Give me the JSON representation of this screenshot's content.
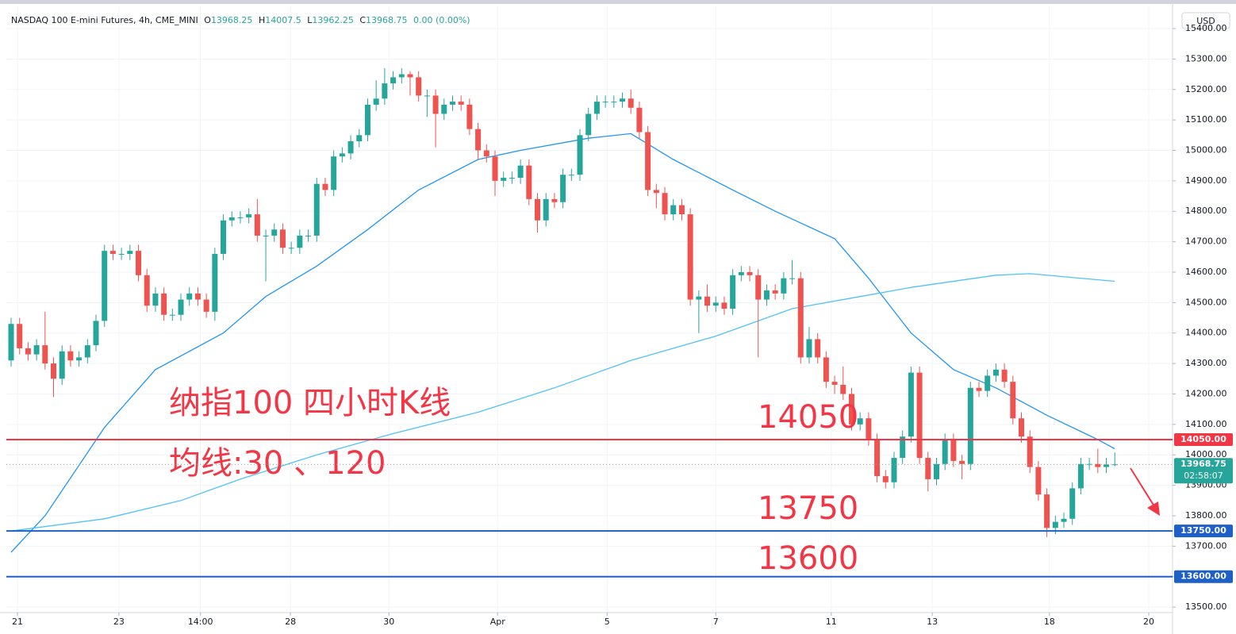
{
  "chart_data": {
    "type": "candlestick",
    "header": {
      "symbol": "NASDAQ 100 E-mini Futures, 4h, CME_MINI",
      "open_label": "O",
      "high_label": "H",
      "low_label": "L",
      "close_label": "C",
      "change": "0.00 (0.00%)"
    },
    "currency": "USD",
    "countdown": "02:58:07",
    "annotations": [
      "纳指100 四小时K线",
      "均线:30 、120",
      "14050",
      "13750",
      "13600"
    ],
    "up_color": "#26a69a",
    "down_color": "#ef5350",
    "xlim": [
      -0.56,
      136.8
    ],
    "ylim": [
      13482,
      15473
    ],
    "grid": true,
    "xticks": [
      {
        "value": 0.75,
        "label": "21"
      },
      {
        "value": 12.7,
        "label": "23"
      },
      {
        "value": 22.3,
        "label": "14:00"
      },
      {
        "value": 32.9,
        "label": "28"
      },
      {
        "value": 44.5,
        "label": "30"
      },
      {
        "value": 57.3,
        "label": "Apr"
      },
      {
        "value": 70.2,
        "label": "5"
      },
      {
        "value": 83,
        "label": "7"
      },
      {
        "value": 96.6,
        "label": "11"
      },
      {
        "value": 108.5,
        "label": "13"
      },
      {
        "value": 122.3,
        "label": "18"
      },
      {
        "value": 134,
        "label": "20"
      }
    ],
    "yticks": [
      {
        "value": 13500,
        "label": "13500.00"
      },
      {
        "value": 13600,
        "label": "13600.00"
      },
      {
        "value": 13700,
        "label": "13700.00"
      },
      {
        "value": 13800,
        "label": "13800.00"
      },
      {
        "value": 13900,
        "label": "13900.00"
      },
      {
        "value": 14000,
        "label": "14000.00"
      },
      {
        "value": 14100,
        "label": "14100.00"
      },
      {
        "value": 14200,
        "label": "14200.00"
      },
      {
        "value": 14300,
        "label": "14300.00"
      },
      {
        "value": 14400,
        "label": "14400.00"
      },
      {
        "value": 14500,
        "label": "14500.00"
      },
      {
        "value": 14600,
        "label": "14600.00"
      },
      {
        "value": 14700,
        "label": "14700.00"
      },
      {
        "value": 14800,
        "label": "14800.00"
      },
      {
        "value": 14900,
        "label": "14900.00"
      },
      {
        "value": 15000,
        "label": "15000.00"
      },
      {
        "value": 15100,
        "label": "15100.00"
      },
      {
        "value": 15200,
        "label": "15200.00"
      },
      {
        "value": 15300,
        "label": "15300.00"
      },
      {
        "value": 15400,
        "label": "15400.00"
      }
    ],
    "levels": [
      {
        "value": 14050,
        "label": "14050.00",
        "color": "#f23645"
      },
      {
        "value": 13750,
        "label": "13750.00",
        "color": "#1e5fc8"
      },
      {
        "value": 13600,
        "label": "13600.00",
        "color": "#1e5fc8"
      }
    ],
    "current_price_label": "13968.75",
    "open": [
      14310,
      14430,
      14350,
      14330,
      14360,
      14300,
      14250,
      14340,
      14310,
      14320,
      14360,
      14440,
      14670,
      14660,
      14660,
      14670,
      14590,
      14490,
      14530,
      14460,
      14460,
      14510,
      14530,
      14510,
      14470,
      14660,
      14770,
      14780,
      14780,
      14790,
      14720,
      14720,
      14740,
      14680,
      14680,
      14720,
      14720,
      14890,
      14870,
      14980,
      14990,
      15030,
      15050,
      15150,
      15170,
      15220,
      15240,
      15250,
      15240,
      15180,
      15180,
      15120,
      15150,
      15160,
      15150,
      15070,
      15000,
      14980,
      14900,
      14910,
      14910,
      14950,
      14840,
      14770,
      14840,
      14830,
      14920,
      14920,
      15050,
      15120,
      15160,
      15160,
      15160,
      15170,
      15140,
      15060,
      14870,
      14860,
      14790,
      14820,
      14790,
      14510,
      14520,
      14490,
      14500,
      14480,
      14590,
      14600,
      14590,
      14510,
      14540,
      14530,
      14580,
      14580,
      14320,
      14380,
      14320,
      14240,
      14230,
      14200,
      14100,
      14120,
      14050,
      13930,
      13910,
      13990,
      14060,
      14270,
      13990,
      13920,
      13970,
      14050,
      13980,
      13970,
      14220,
      14210,
      14260,
      14280,
      14240,
      14120,
      14060,
      13960,
      13870,
      13760,
      13780,
      13790,
      13890,
      13970,
      13970,
      13960,
      13968.25
    ],
    "high": [
      14450,
      14450,
      14370,
      14380,
      14470,
      14320,
      14360,
      14360,
      14340,
      14380,
      14460,
      14690,
      14690,
      14680,
      14690,
      14690,
      14610,
      14550,
      14550,
      14480,
      14530,
      14550,
      14550,
      14530,
      14680,
      14790,
      14800,
      14800,
      14810,
      14840,
      14740,
      14760,
      14760,
      14700,
      14740,
      14740,
      14910,
      14910,
      15000,
      15010,
      15050,
      15070,
      15170,
      15230,
      15270,
      15260,
      15270,
      15260,
      15260,
      15200,
      15200,
      15170,
      15180,
      15180,
      15170,
      15090,
      15020,
      15000,
      14930,
      14930,
      14970,
      14970,
      14860,
      14860,
      14860,
      14940,
      14940,
      15070,
      15140,
      15180,
      15180,
      15180,
      15190,
      15200,
      15160,
      15080,
      14890,
      14880,
      14840,
      14840,
      14810,
      14540,
      14560,
      14520,
      14520,
      14610,
      14620,
      14620,
      14610,
      14560,
      14560,
      14600,
      14640,
      14600,
      14420,
      14400,
      14340,
      14260,
      14290,
      14220,
      14140,
      14140,
      14070,
      13950,
      14010,
      14080,
      14290,
      14290,
      14010,
      13990,
      14070,
      14070,
      14000,
      14240,
      14240,
      14280,
      14300,
      14300,
      14260,
      14140,
      14080,
      13980,
      13890,
      13800,
      13810,
      13910,
      13990,
      13990,
      14020,
      13990,
      14007.5
    ],
    "low": [
      14290,
      14330,
      14310,
      14310,
      14280,
      14190,
      14230,
      14290,
      14290,
      14300,
      14340,
      14420,
      14640,
      14640,
      14640,
      14570,
      14470,
      14470,
      14440,
      14440,
      14440,
      14490,
      14490,
      14450,
      14440,
      14640,
      14750,
      14760,
      14760,
      14700,
      14570,
      14700,
      14660,
      14660,
      14660,
      14700,
      14700,
      14850,
      14850,
      14960,
      14970,
      15010,
      15030,
      15130,
      15150,
      15200,
      15220,
      15180,
      15160,
      15110,
      15010,
      15100,
      15130,
      15130,
      15050,
      14970,
      14960,
      14850,
      14880,
      14890,
      14890,
      14820,
      14730,
      14750,
      14810,
      14810,
      14900,
      14900,
      15030,
      15100,
      15140,
      15140,
      15140,
      15120,
      15040,
      14850,
      14810,
      14770,
      14770,
      14770,
      14490,
      14400,
      14470,
      14470,
      14460,
      14460,
      14570,
      14570,
      14320,
      14490,
      14510,
      14510,
      14560,
      14300,
      14300,
      14300,
      14220,
      14200,
      14180,
      14080,
      14080,
      14030,
      13910,
      13890,
      13890,
      13970,
      14040,
      13970,
      13880,
      13900,
      13950,
      13960,
      13920,
      13950,
      14190,
      14190,
      14240,
      14220,
      14100,
      14040,
      13940,
      13850,
      13730,
      13740,
      13760,
      13770,
      13870,
      13950,
      13940,
      13940,
      13962.25
    ],
    "close": [
      14430,
      14350,
      14330,
      14360,
      14300,
      14250,
      14340,
      14310,
      14320,
      14360,
      14440,
      14670,
      14660,
      14660,
      14670,
      14590,
      14490,
      14530,
      14460,
      14460,
      14510,
      14530,
      14510,
      14470,
      14660,
      14770,
      14780,
      14780,
      14790,
      14720,
      14720,
      14740,
      14680,
      14680,
      14720,
      14720,
      14890,
      14870,
      14980,
      14990,
      15030,
      15050,
      15150,
      15170,
      15220,
      15240,
      15250,
      15240,
      15180,
      15180,
      15120,
      15150,
      15160,
      15150,
      15070,
      15000,
      14980,
      14900,
      14910,
      14910,
      14950,
      14840,
      14770,
      14840,
      14830,
      14920,
      14920,
      15050,
      15120,
      15160,
      15160,
      15160,
      15170,
      15140,
      15060,
      14870,
      14860,
      14790,
      14820,
      14790,
      14510,
      14520,
      14490,
      14500,
      14480,
      14590,
      14600,
      14590,
      14510,
      14540,
      14530,
      14580,
      14580,
      14320,
      14380,
      14320,
      14240,
      14230,
      14200,
      14100,
      14120,
      14050,
      13930,
      13910,
      13990,
      14060,
      14270,
      13990,
      13920,
      13970,
      14050,
      13980,
      13970,
      14220,
      14210,
      14260,
      14280,
      14240,
      14120,
      14060,
      13960,
      13870,
      13760,
      13780,
      13790,
      13890,
      13970,
      13970,
      13960,
      13968.25,
      13968.75
    ],
    "series": [
      {
        "name": "MA30",
        "color": "#2196f3",
        "x": [
          0,
          4,
          11,
          17,
          25,
          30,
          36,
          42,
          48,
          55,
          60,
          68,
          73,
          78,
          85,
          90,
          97,
          101,
          106,
          111,
          116,
          122,
          128,
          130
        ],
        "values": [
          13680,
          13800,
          14090,
          14280,
          14400,
          14520,
          14620,
          14740,
          14870,
          14970,
          15000,
          15040,
          15055,
          14970,
          14870,
          14800,
          14710,
          14580,
          14400,
          14280,
          14220,
          14130,
          14050,
          14020
        ]
      },
      {
        "name": "MA120",
        "color": "#4fc3f7",
        "x": [
          0,
          11,
          20,
          27,
          36,
          45,
          55,
          64,
          73,
          83,
          92,
          101,
          106,
          116,
          120,
          130
        ],
        "values": [
          13750,
          13790,
          13850,
          13920,
          14000,
          14070,
          14140,
          14220,
          14310,
          14390,
          14480,
          14525,
          14550,
          14590,
          14595,
          14570
        ]
      }
    ]
  }
}
